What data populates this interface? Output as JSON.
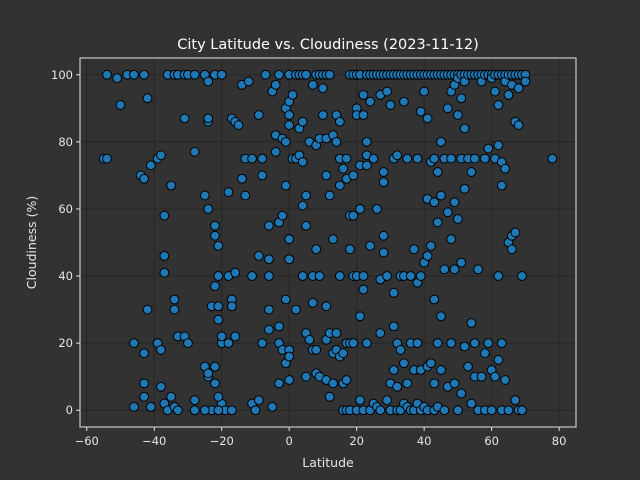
{
  "chart_data": {
    "type": "scatter",
    "title": "City Latitude vs. Cloudiness (2023-11-12)",
    "xlabel": "Latitude",
    "ylabel": "Cloudiness (%)",
    "xlim": [
      -62,
      85
    ],
    "ylim": [
      -5,
      105
    ],
    "xticks": [
      -60,
      -40,
      -20,
      0,
      20,
      40,
      60,
      80
    ],
    "yticks": [
      0,
      20,
      40,
      60,
      80,
      100
    ],
    "grid": true,
    "colors": {
      "background": "#323232",
      "marker": "#1f77b4",
      "edge": "#000000",
      "text": "#e6e6e6"
    },
    "points": [
      [
        -54,
        100
      ],
      [
        -51,
        99
      ],
      [
        -50,
        91
      ],
      [
        -48,
        100
      ],
      [
        -46,
        100
      ],
      [
        -43,
        100
      ],
      [
        -42,
        93
      ],
      [
        -55,
        75
      ],
      [
        -54,
        75
      ],
      [
        -44,
        70
      ],
      [
        -43,
        69
      ],
      [
        -41,
        73
      ],
      [
        -39,
        75
      ],
      [
        -38,
        76
      ],
      [
        -42,
        30
      ],
      [
        -46,
        20
      ],
      [
        -43,
        17
      ],
      [
        -39,
        20
      ],
      [
        -38,
        18
      ],
      [
        -46,
        1
      ],
      [
        -43,
        8
      ],
      [
        -43,
        4
      ],
      [
        -41,
        1
      ],
      [
        -38,
        7
      ],
      [
        -37,
        2
      ],
      [
        -36,
        0
      ],
      [
        -35,
        4
      ],
      [
        -34,
        1
      ],
      [
        -33,
        0
      ],
      [
        -36,
        100
      ],
      [
        -34,
        100
      ],
      [
        -33,
        100
      ],
      [
        -31,
        100
      ],
      [
        -30,
        100
      ],
      [
        -28,
        100
      ],
      [
        -25,
        100
      ],
      [
        -24,
        98
      ],
      [
        -22,
        100
      ],
      [
        -20,
        100
      ],
      [
        -37,
        58
      ],
      [
        -37,
        46
      ],
      [
        -37,
        41
      ],
      [
        -35,
        67
      ],
      [
        -34,
        33
      ],
      [
        -34,
        30
      ],
      [
        -33,
        22
      ],
      [
        -31,
        87
      ],
      [
        -31,
        22
      ],
      [
        -30,
        20
      ],
      [
        -28,
        77
      ],
      [
        -25,
        64
      ],
      [
        -24,
        60
      ],
      [
        -24,
        86
      ],
      [
        -24,
        87
      ],
      [
        -22,
        55
      ],
      [
        -22,
        52
      ],
      [
        -21,
        49
      ],
      [
        -22,
        37
      ],
      [
        -21,
        40
      ],
      [
        -23,
        31
      ],
      [
        -21,
        31
      ],
      [
        -25,
        13
      ],
      [
        -24,
        10
      ],
      [
        -24,
        11
      ],
      [
        -22,
        13
      ],
      [
        -22,
        8
      ],
      [
        -20,
        2
      ],
      [
        -21,
        4
      ],
      [
        -23,
        0
      ],
      [
        -25,
        0
      ],
      [
        -19,
        0
      ],
      [
        -21,
        0
      ],
      [
        -17,
        0
      ],
      [
        -28,
        3
      ],
      [
        -28,
        0
      ],
      [
        -21,
        27
      ],
      [
        -20,
        20
      ],
      [
        -20,
        22
      ],
      [
        -18,
        20
      ],
      [
        -18,
        65
      ],
      [
        -18,
        40
      ],
      [
        -17,
        33
      ],
      [
        -17,
        31
      ],
      [
        -17,
        87
      ],
      [
        -16,
        86
      ],
      [
        -16,
        41
      ],
      [
        -16,
        22
      ],
      [
        -15,
        85
      ],
      [
        -14,
        97
      ],
      [
        -14,
        69
      ],
      [
        -13,
        75
      ],
      [
        -13,
        64
      ],
      [
        -12,
        98
      ],
      [
        -11,
        75
      ],
      [
        -11,
        40
      ],
      [
        -11,
        2
      ],
      [
        -10,
        0
      ],
      [
        -9,
        46
      ],
      [
        -9,
        88
      ],
      [
        -9,
        3
      ],
      [
        -8,
        75
      ],
      [
        -8,
        70
      ],
      [
        -8,
        20
      ],
      [
        -7,
        100
      ],
      [
        -6,
        55
      ],
      [
        -6,
        45
      ],
      [
        -6,
        40
      ],
      [
        -6,
        30
      ],
      [
        -6,
        24
      ],
      [
        -5,
        95
      ],
      [
        -5,
        1
      ],
      [
        -4,
        97
      ],
      [
        -4,
        82
      ],
      [
        -4,
        77
      ],
      [
        -3,
        100
      ],
      [
        -3,
        56
      ],
      [
        -3,
        25
      ],
      [
        -3,
        20
      ],
      [
        -3,
        8
      ],
      [
        -2,
        81
      ],
      [
        -2,
        58
      ],
      [
        -2,
        18
      ],
      [
        -1,
        90
      ],
      [
        -1,
        80
      ],
      [
        -1,
        67
      ],
      [
        -1,
        33
      ],
      [
        -1,
        14
      ],
      [
        0,
        100
      ],
      [
        0,
        92
      ],
      [
        0,
        88
      ],
      [
        0,
        85
      ],
      [
        0,
        51
      ],
      [
        0,
        45
      ],
      [
        0,
        18
      ],
      [
        0,
        16
      ],
      [
        0,
        9
      ],
      [
        1,
        94
      ],
      [
        1,
        75
      ],
      [
        2,
        100
      ],
      [
        2,
        75
      ],
      [
        2,
        30
      ],
      [
        3,
        100
      ],
      [
        3,
        84
      ],
      [
        3,
        76
      ],
      [
        4,
        100
      ],
      [
        4,
        86
      ],
      [
        4,
        74
      ],
      [
        4,
        61
      ],
      [
        4,
        40
      ],
      [
        5,
        100
      ],
      [
        5,
        64
      ],
      [
        5,
        55
      ],
      [
        5,
        23
      ],
      [
        5,
        10
      ],
      [
        6,
        80
      ],
      [
        6,
        21
      ],
      [
        7,
        97
      ],
      [
        7,
        40
      ],
      [
        7,
        32
      ],
      [
        7,
        18
      ],
      [
        8,
        100
      ],
      [
        8,
        79
      ],
      [
        8,
        48
      ],
      [
        8,
        18
      ],
      [
        8,
        11
      ],
      [
        9,
        100
      ],
      [
        9,
        81
      ],
      [
        9,
        40
      ],
      [
        9,
        10
      ],
      [
        10,
        100
      ],
      [
        10,
        96
      ],
      [
        10,
        88
      ],
      [
        11,
        100
      ],
      [
        11,
        70
      ],
      [
        11,
        81
      ],
      [
        11,
        31
      ],
      [
        11,
        21
      ],
      [
        11,
        9
      ],
      [
        12,
        100
      ],
      [
        12,
        64
      ],
      [
        12,
        23
      ],
      [
        12,
        4
      ],
      [
        13,
        82
      ],
      [
        13,
        51
      ],
      [
        13,
        17
      ],
      [
        13,
        8
      ],
      [
        14,
        88
      ],
      [
        14,
        80
      ],
      [
        14,
        23
      ],
      [
        14,
        18
      ],
      [
        15,
        86
      ],
      [
        15,
        75
      ],
      [
        15,
        67
      ],
      [
        15,
        40
      ],
      [
        15,
        16
      ],
      [
        16,
        72
      ],
      [
        16,
        17
      ],
      [
        16,
        8
      ],
      [
        16,
        0
      ],
      [
        17,
        75
      ],
      [
        17,
        69
      ],
      [
        17,
        20
      ],
      [
        17,
        9
      ],
      [
        17,
        0
      ],
      [
        18,
        100
      ],
      [
        18,
        58
      ],
      [
        18,
        48
      ],
      [
        18,
        20
      ],
      [
        18,
        0
      ],
      [
        19,
        100
      ],
      [
        19,
        70
      ],
      [
        19,
        58
      ],
      [
        19,
        40
      ],
      [
        19,
        20
      ],
      [
        20,
        100
      ],
      [
        20,
        90
      ],
      [
        20,
        88
      ],
      [
        20,
        40
      ],
      [
        20,
        0
      ],
      [
        21,
        100
      ],
      [
        21,
        73
      ],
      [
        21,
        60
      ],
      [
        21,
        28
      ],
      [
        21,
        3
      ],
      [
        22,
        94
      ],
      [
        22,
        88
      ],
      [
        22,
        40
      ],
      [
        22,
        36
      ],
      [
        22,
        0
      ],
      [
        23,
        100
      ],
      [
        23,
        80
      ],
      [
        23,
        76
      ],
      [
        23,
        73
      ],
      [
        23,
        20
      ],
      [
        24,
        100
      ],
      [
        24,
        92
      ],
      [
        24,
        49
      ],
      [
        24,
        0
      ],
      [
        25,
        100
      ],
      [
        25,
        75
      ],
      [
        25,
        2
      ],
      [
        26,
        100
      ],
      [
        26,
        60
      ],
      [
        26,
        1
      ],
      [
        27,
        100
      ],
      [
        27,
        94
      ],
      [
        27,
        39
      ],
      [
        27,
        23
      ],
      [
        27,
        0
      ],
      [
        28,
        100
      ],
      [
        28,
        71
      ],
      [
        28,
        68
      ],
      [
        28,
        52
      ],
      [
        28,
        47
      ],
      [
        29,
        100
      ],
      [
        29,
        95
      ],
      [
        29,
        40
      ],
      [
        29,
        3
      ],
      [
        30,
        100
      ],
      [
        30,
        91
      ],
      [
        30,
        8
      ],
      [
        30,
        0
      ],
      [
        31,
        100
      ],
      [
        31,
        75
      ],
      [
        31,
        35
      ],
      [
        31,
        25
      ],
      [
        31,
        12
      ],
      [
        32,
        100
      ],
      [
        32,
        76
      ],
      [
        32,
        20
      ],
      [
        32,
        7
      ],
      [
        32,
        0
      ],
      [
        33,
        100
      ],
      [
        33,
        40
      ],
      [
        33,
        18
      ],
      [
        33,
        0
      ],
      [
        34,
        100
      ],
      [
        34,
        92
      ],
      [
        34,
        40
      ],
      [
        34,
        14
      ],
      [
        34,
        2
      ],
      [
        35,
        100
      ],
      [
        35,
        75
      ],
      [
        35,
        8
      ],
      [
        35,
        1
      ],
      [
        36,
        100
      ],
      [
        36,
        40
      ],
      [
        36,
        20
      ],
      [
        36,
        0
      ],
      [
        37,
        100
      ],
      [
        37,
        48
      ],
      [
        37,
        12
      ],
      [
        37,
        0
      ],
      [
        38,
        100
      ],
      [
        38,
        75
      ],
      [
        38,
        38
      ],
      [
        38,
        20
      ],
      [
        38,
        2
      ],
      [
        39,
        100
      ],
      [
        39,
        89
      ],
      [
        39,
        40
      ],
      [
        39,
        12
      ],
      [
        39,
        0
      ],
      [
        40,
        100
      ],
      [
        40,
        95
      ],
      [
        40,
        44
      ],
      [
        40,
        1
      ],
      [
        41,
        100
      ],
      [
        41,
        87
      ],
      [
        41,
        63
      ],
      [
        41,
        46
      ],
      [
        41,
        13
      ],
      [
        41,
        0
      ],
      [
        42,
        100
      ],
      [
        42,
        74
      ],
      [
        42,
        49
      ],
      [
        42,
        14
      ],
      [
        43,
        100
      ],
      [
        43,
        75
      ],
      [
        43,
        62
      ],
      [
        43,
        33
      ],
      [
        43,
        8
      ],
      [
        43,
        0
      ],
      [
        44,
        100
      ],
      [
        44,
        71
      ],
      [
        44,
        56
      ],
      [
        44,
        20
      ],
      [
        44,
        1
      ],
      [
        45,
        100
      ],
      [
        45,
        80
      ],
      [
        45,
        64
      ],
      [
        45,
        28
      ],
      [
        45,
        12
      ],
      [
        46,
        100
      ],
      [
        46,
        75
      ],
      [
        46,
        42
      ],
      [
        46,
        0
      ],
      [
        47,
        100
      ],
      [
        47,
        90
      ],
      [
        47,
        59
      ],
      [
        47,
        7
      ],
      [
        48,
        100
      ],
      [
        48,
        95
      ],
      [
        48,
        75
      ],
      [
        48,
        51
      ],
      [
        48,
        20
      ],
      [
        49,
        100
      ],
      [
        49,
        97
      ],
      [
        49,
        62
      ],
      [
        49,
        42
      ],
      [
        49,
        8
      ],
      [
        50,
        100
      ],
      [
        50,
        99
      ],
      [
        50,
        88
      ],
      [
        50,
        57
      ],
      [
        50,
        0
      ],
      [
        51,
        100
      ],
      [
        51,
        93
      ],
      [
        51,
        75
      ],
      [
        51,
        44
      ],
      [
        51,
        5
      ],
      [
        52,
        100
      ],
      [
        52,
        98
      ],
      [
        52,
        84
      ],
      [
        52,
        66
      ],
      [
        52,
        19
      ],
      [
        53,
        100
      ],
      [
        53,
        75
      ],
      [
        53,
        13
      ],
      [
        54,
        100
      ],
      [
        54,
        71
      ],
      [
        54,
        26
      ],
      [
        54,
        2
      ],
      [
        55,
        100
      ],
      [
        55,
        75
      ],
      [
        55,
        20
      ],
      [
        55,
        10
      ],
      [
        56,
        100
      ],
      [
        56,
        42
      ],
      [
        56,
        0
      ],
      [
        57,
        100
      ],
      [
        57,
        98
      ],
      [
        57,
        10
      ],
      [
        58,
        100
      ],
      [
        58,
        75
      ],
      [
        58,
        17
      ],
      [
        58,
        0
      ],
      [
        59,
        100
      ],
      [
        59,
        78
      ],
      [
        59,
        20
      ],
      [
        60,
        100
      ],
      [
        60,
        99
      ],
      [
        60,
        12
      ],
      [
        60,
        0
      ],
      [
        61,
        100
      ],
      [
        61,
        95
      ],
      [
        61,
        75
      ],
      [
        61,
        10
      ],
      [
        62,
        100
      ],
      [
        62,
        91
      ],
      [
        62,
        79
      ],
      [
        62,
        40
      ],
      [
        62,
        15
      ],
      [
        63,
        100
      ],
      [
        63,
        74
      ],
      [
        63,
        67
      ],
      [
        63,
        20
      ],
      [
        63,
        0
      ],
      [
        64,
        100
      ],
      [
        64,
        98
      ],
      [
        64,
        72
      ],
      [
        64,
        9
      ],
      [
        65,
        100
      ],
      [
        65,
        94
      ],
      [
        65,
        50
      ],
      [
        65,
        0
      ],
      [
        66,
        100
      ],
      [
        66,
        97
      ],
      [
        66,
        52
      ],
      [
        66,
        48
      ],
      [
        67,
        100
      ],
      [
        67,
        86
      ],
      [
        67,
        53
      ],
      [
        67,
        3
      ],
      [
        68,
        100
      ],
      [
        68,
        96
      ],
      [
        68,
        85
      ],
      [
        68,
        0
      ],
      [
        69,
        100
      ],
      [
        69,
        40
      ],
      [
        69,
        0
      ],
      [
        70,
        100
      ],
      [
        70,
        98
      ],
      [
        78,
        75
      ]
    ]
  }
}
